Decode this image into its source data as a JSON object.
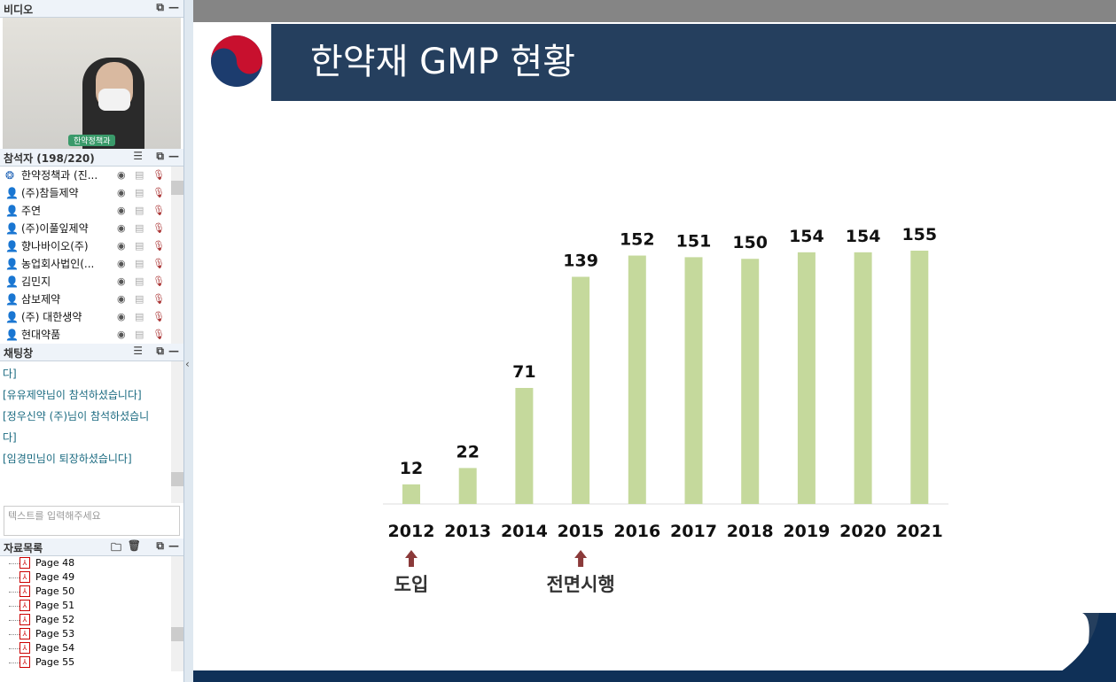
{
  "video": {
    "title": "비디오",
    "name_tag": "한약정책과"
  },
  "participants": {
    "title": "참석자 (198/220)",
    "items": [
      {
        "name": "한약정책과 (진...",
        "host": true
      },
      {
        "name": "(주)참들제약"
      },
      {
        "name": "주연"
      },
      {
        "name": "(주)이풀잎제약"
      },
      {
        "name": "향나바이오(주)"
      },
      {
        "name": "농업회사법인(..."
      },
      {
        "name": "김민지"
      },
      {
        "name": "삼보제약"
      },
      {
        "name": "(주) 대한생약"
      },
      {
        "name": "현대약품"
      }
    ]
  },
  "chat": {
    "title": "채팅창",
    "messages": [
      "다]",
      "[유유제약님이 참석하셨습니다]",
      "[정우신약 (주)님이 참석하셨습니",
      "다]",
      "[임경민님이 퇴장하셨습니다]"
    ],
    "placeholder": "텍스트를 입력해주세요"
  },
  "files": {
    "title": "자료목록",
    "items": [
      "Page 48",
      "Page 49",
      "Page 50",
      "Page 51",
      "Page 52",
      "Page 53",
      "Page 54",
      "Page 55"
    ]
  },
  "slide": {
    "title": "한약재 GMP 현황"
  },
  "chart_data": {
    "type": "bar",
    "categories": [
      "2012",
      "2013",
      "2014",
      "2015",
      "2016",
      "2017",
      "2018",
      "2019",
      "2020",
      "2021"
    ],
    "values": [
      12,
      22,
      71,
      139,
      152,
      151,
      150,
      154,
      154,
      155
    ],
    "color": "#c5d99c",
    "ylim": [
      0,
      160
    ],
    "grid": false,
    "annotations": [
      {
        "category": "2012",
        "text": "도입"
      },
      {
        "category": "2015",
        "text": "전면시행"
      }
    ]
  }
}
